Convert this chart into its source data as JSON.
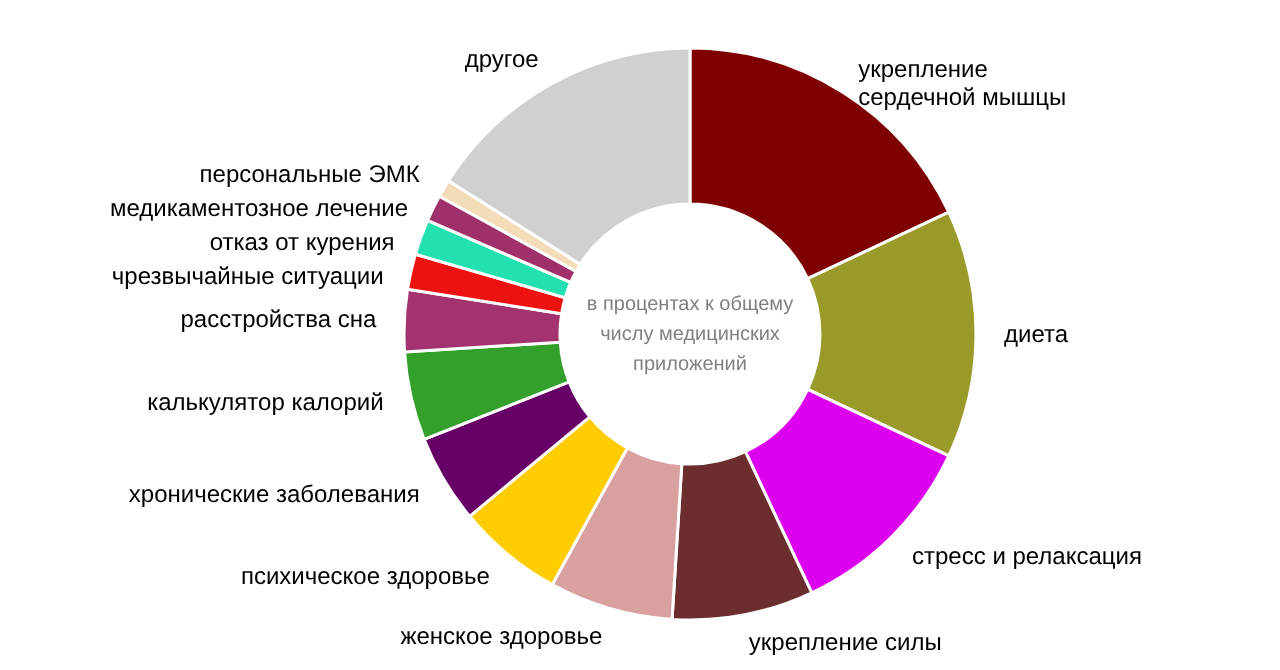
{
  "chart_data": {
    "type": "donut",
    "categories": [
      "укрепление сердечной мышцы",
      "диета",
      "стресс и релаксация",
      "укрепление силы",
      "женское здоровье",
      "психическое здоровье",
      "хронические заболевания",
      "калькулятор калорий",
      "расстройства сна",
      "чрезвычайные ситуации",
      "отказ от курения",
      "медикаментозное лечение",
      "персональные ЭМК",
      "другое"
    ],
    "values": [
      18,
      14,
      11,
      8,
      7,
      6,
      5,
      5,
      3.5,
      2,
      2,
      1.5,
      1,
      16
    ],
    "colors": [
      "#7f0000",
      "#9a9a2a",
      "#dd00ee",
      "#6b2d2d",
      "#d9a0a0",
      "#ffcc00",
      "#660066",
      "#33a02c",
      "#a3336e",
      "#ee1111",
      "#22e0b0",
      "#a0306a",
      "#f3dcb8",
      "#d0d0d0"
    ],
    "annotations": [
      "в процентах к общему числу медицинских приложений"
    ]
  }
}
